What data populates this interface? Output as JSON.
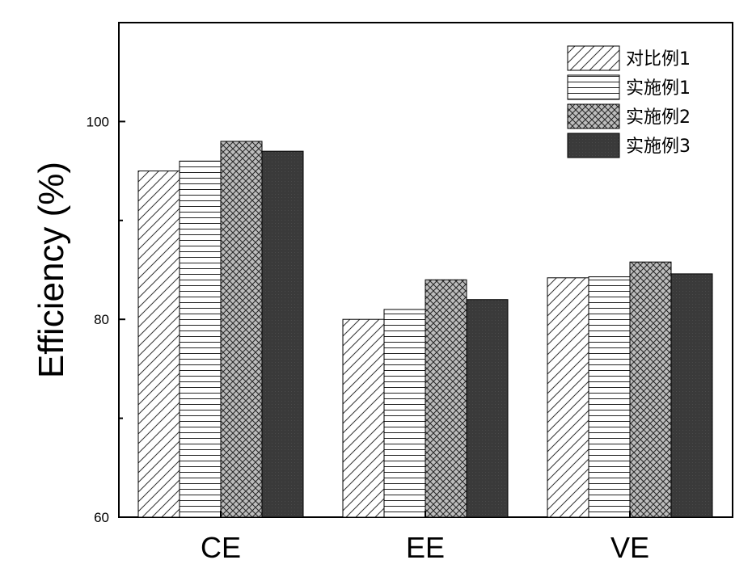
{
  "chart_data": {
    "type": "bar",
    "title": "",
    "xlabel": "",
    "ylabel": "Efficiency (%)",
    "categories": [
      "CE",
      "EE",
      "VE"
    ],
    "ylim": [
      60,
      110
    ],
    "yticks": [
      60,
      80,
      100
    ],
    "yticks_minor": [
      70,
      90
    ],
    "legend_position": "top-right",
    "series": [
      {
        "name": "对比例1",
        "values": [
          95,
          80,
          84.2
        ],
        "pattern": "diagonal-hatch",
        "color": "#ffffff"
      },
      {
        "name": "实施例1",
        "values": [
          96,
          81,
          84.3
        ],
        "pattern": "horizontal-lines",
        "color": "#ffffff"
      },
      {
        "name": "实施例2",
        "values": [
          98,
          84,
          85.8
        ],
        "pattern": "crosshatch",
        "color": "#888888"
      },
      {
        "name": "实施例3",
        "values": [
          97,
          82,
          84.6
        ],
        "pattern": "solid",
        "color": "#333333"
      }
    ]
  }
}
